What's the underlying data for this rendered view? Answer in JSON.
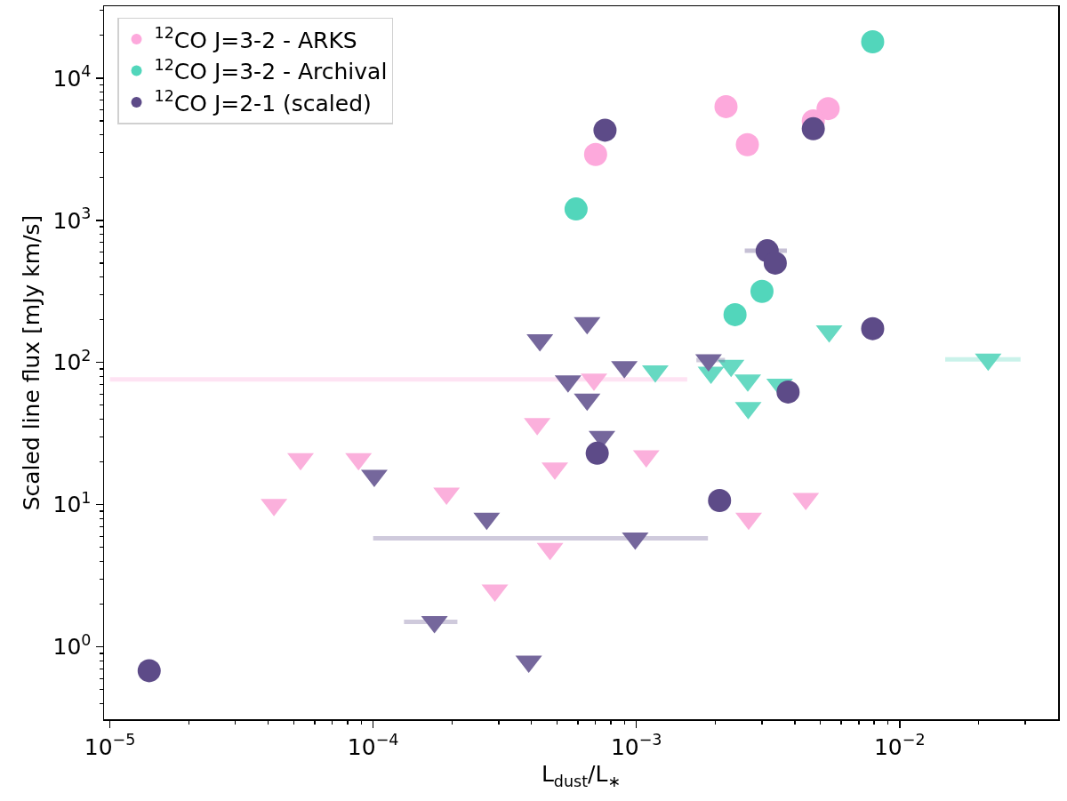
{
  "chart_data": {
    "type": "scatter",
    "xlabel": "L$_{dust}$/L$_{∗}$",
    "ylabel": "Scaled line flux [mJy km/s]",
    "log": "xy",
    "grid": false,
    "legend": "top left",
    "xlim": [
      9.5e-06,
      0.04
    ],
    "ylim": [
      0.31,
      32000
    ],
    "xticks": [
      {
        "value": 1e-05,
        "label": "10$^{−5}$"
      },
      {
        "value": 2e-05,
        "label": null
      },
      {
        "value": 3e-05,
        "label": null
      },
      {
        "value": 4e-05,
        "label": null
      },
      {
        "value": 5e-05,
        "label": null
      },
      {
        "value": 6e-05,
        "label": null
      },
      {
        "value": 7e-05,
        "label": null
      },
      {
        "value": 8e-05,
        "label": null
      },
      {
        "value": 9e-05,
        "label": null
      },
      {
        "value": 0.0001,
        "label": "10$^{−4}$"
      },
      {
        "value": 0.0002,
        "label": null
      },
      {
        "value": 0.0003,
        "label": null
      },
      {
        "value": 0.0004,
        "label": null
      },
      {
        "value": 0.0005,
        "label": null
      },
      {
        "value": 0.0006,
        "label": null
      },
      {
        "value": 0.0007,
        "label": null
      },
      {
        "value": 0.0008,
        "label": null
      },
      {
        "value": 0.0009,
        "label": null
      },
      {
        "value": 0.001,
        "label": "10$^{−3}$"
      },
      {
        "value": 0.002,
        "label": null
      },
      {
        "value": 0.003,
        "label": null
      },
      {
        "value": 0.004,
        "label": null
      },
      {
        "value": 0.005,
        "label": null
      },
      {
        "value": 0.006,
        "label": null
      },
      {
        "value": 0.007,
        "label": null
      },
      {
        "value": 0.008,
        "label": null
      },
      {
        "value": 0.009,
        "label": null
      },
      {
        "value": 0.01,
        "label": "10$^{−2}$"
      },
      {
        "value": 0.02,
        "label": null
      },
      {
        "value": 0.03,
        "label": null
      }
    ],
    "yticks": [
      {
        "value": 0.4,
        "label": null
      },
      {
        "value": 0.5,
        "label": null
      },
      {
        "value": 0.6,
        "label": null
      },
      {
        "value": 0.7,
        "label": null
      },
      {
        "value": 0.8,
        "label": null
      },
      {
        "value": 0.9,
        "label": null
      },
      {
        "value": 1,
        "label": "10$^{0}$"
      },
      {
        "value": 2,
        "label": null
      },
      {
        "value": 3,
        "label": null
      },
      {
        "value": 4,
        "label": null
      },
      {
        "value": 5,
        "label": null
      },
      {
        "value": 6,
        "label": null
      },
      {
        "value": 7,
        "label": null
      },
      {
        "value": 8,
        "label": null
      },
      {
        "value": 9,
        "label": null
      },
      {
        "value": 10,
        "label": "10$^{1}$"
      },
      {
        "value": 20,
        "label": null
      },
      {
        "value": 30,
        "label": null
      },
      {
        "value": 40,
        "label": null
      },
      {
        "value": 50,
        "label": null
      },
      {
        "value": 60,
        "label": null
      },
      {
        "value": 70,
        "label": null
      },
      {
        "value": 80,
        "label": null
      },
      {
        "value": 90,
        "label": null
      },
      {
        "value": 100,
        "label": "10$^{2}$"
      },
      {
        "value": 200,
        "label": null
      },
      {
        "value": 300,
        "label": null
      },
      {
        "value": 400,
        "label": null
      },
      {
        "value": 500,
        "label": null
      },
      {
        "value": 600,
        "label": null
      },
      {
        "value": 700,
        "label": null
      },
      {
        "value": 800,
        "label": null
      },
      {
        "value": 900,
        "label": null
      },
      {
        "value": 1000,
        "label": "10$^{3}$"
      },
      {
        "value": 2000,
        "label": null
      },
      {
        "value": 3000,
        "label": null
      },
      {
        "value": 4000,
        "label": null
      },
      {
        "value": 5000,
        "label": null
      },
      {
        "value": 6000,
        "label": null
      },
      {
        "value": 7000,
        "label": null
      },
      {
        "value": 8000,
        "label": null
      },
      {
        "value": 9000,
        "label": null
      },
      {
        "value": 10000,
        "label": "10$^{4}$"
      },
      {
        "value": 20000,
        "label": null
      },
      {
        "value": 30000,
        "label": null
      }
    ],
    "series": [
      {
        "color": "#fbb0dc",
        "marker": "triangle",
        "x": [
          0.00069,
          0.00042,
          0.00109,
          0.00049,
          0.0044,
          0.00267,
          0.00047,
          4.2e-05,
          5.3e-05,
          8.8e-05,
          0.00019,
          0.00029
        ],
        "values": [
          76,
          37,
          22,
          18,
          11,
          8,
          4.9,
          10,
          21,
          21,
          12,
          2.5
        ],
        "xerrors": [
          [
            1e-05,
            0.00156
          ],
          null,
          null,
          null,
          null,
          null,
          null,
          null,
          null,
          null,
          null,
          null
        ]
      },
      {
        "color": "#66d9c2",
        "marker": "triangle",
        "x": [
          0.0054,
          0.0217,
          0.00118,
          0.00192,
          0.00229,
          0.00265,
          0.0035,
          0.00266
        ],
        "values": [
          166,
          105,
          87,
          85,
          95,
          75,
          70,
          48
        ],
        "xerrors": [
          null,
          [
            0.0149,
            0.0288
          ],
          null,
          null,
          null,
          null,
          null,
          null
        ]
      },
      {
        "color": "#75679c",
        "marker": "triangle",
        "x": [
          0.00065,
          0.00043,
          0.0009,
          0.00055,
          0.00188,
          0.00065,
          0.00074,
          0.00099,
          0.000101,
          0.00027,
          0.000171,
          0.00039
        ],
        "values": [
          190,
          144,
          93,
          74,
          104,
          55,
          30,
          5.8,
          16,
          8,
          1.5,
          0.79
        ],
        "xerrors": [
          null,
          null,
          null,
          null,
          [
            0.00169,
            0.00217
          ],
          null,
          null,
          [
            0.0001,
            0.00187
          ],
          null,
          null,
          [
            0.000131,
            0.000209
          ],
          null
        ]
      },
      {
        "name": "$^{12}$CO J=3-2 - ARKS",
        "color": "#fda9dc",
        "marker": "circle",
        "x": [
          0.0007,
          0.00219,
          0.00264,
          0.00535,
          0.0047
        ],
        "values": [
          2900,
          6300,
          3400,
          6100,
          5000
        ]
      },
      {
        "name": "$^{12}$CO J=3-2 - Archival",
        "color": "#52d6bb",
        "marker": "circle",
        "x": [
          0.0079,
          0.00059,
          0.00237,
          0.003
        ],
        "values": [
          18000,
          1200,
          217,
          316
        ]
      },
      {
        "name": "$^{12}$CO J=2-1 (scaled)",
        "color": "#5d4b88",
        "marker": "circle",
        "x": [
          0.00076,
          0.0047,
          0.00314,
          0.00337,
          0.0079,
          0.00377,
          0.00071,
          0.00207,
          1.41e-05
        ],
        "values": [
          4300,
          4400,
          610,
          500,
          173,
          62,
          23,
          10.7,
          0.68
        ],
        "xerrors": [
          null,
          null,
          [
            0.00258,
            0.00373
          ],
          null,
          null,
          null,
          null,
          null,
          null
        ]
      }
    ]
  }
}
